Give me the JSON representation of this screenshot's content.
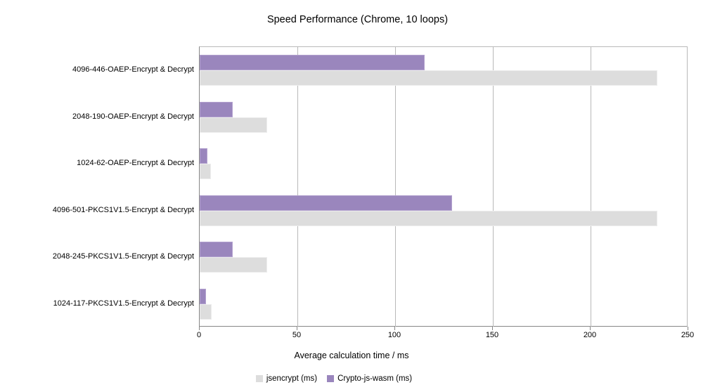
{
  "chart_data": {
    "type": "bar",
    "orientation": "horizontal",
    "title": "Speed Performance (Chrome, 10 loops)",
    "xlabel": "Average calculation time / ms",
    "categories": [
      "4096-446-OAEP-Encrypt & Decrypt",
      "2048-190-OAEP-Encrypt & Decrypt",
      "1024-62-OAEP-Encrypt & Decrypt",
      "4096-501-PKCS1V1.5-Encrypt & Decrypt",
      "2048-245-PKCS1V1.5-Encrypt & Decrypt",
      "1024-117-PKCS1V1.5-Encrypt & Decrypt"
    ],
    "series": [
      {
        "name": "jsencrypt (ms)",
        "color": "#dddddd",
        "border_color": "#ececec",
        "values": [
          234,
          34.5,
          5.7,
          234,
          34.5,
          6.1
        ]
      },
      {
        "name": "Crypto-js-wasm (ms)",
        "color": "#9a86bd",
        "border_color": "#b3a2cf",
        "values": [
          115,
          17,
          4,
          129,
          17,
          3.2
        ]
      }
    ],
    "xlim": [
      0,
      250
    ],
    "xticks": [
      0,
      50,
      100,
      150,
      200,
      250
    ],
    "grid": "vertical",
    "legend_position": "bottom",
    "colors": {
      "gridline": "#b9b9b9",
      "axis": "#878787",
      "text": "#000000"
    }
  }
}
